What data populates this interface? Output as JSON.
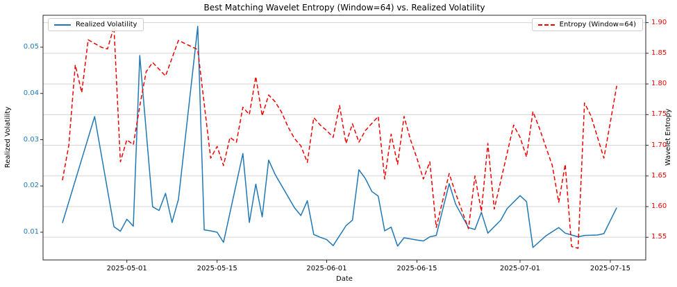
{
  "figure": {
    "title": "Best Matching Wavelet Entropy (Window=64) vs. Realized Volatility",
    "xlabel": "Date",
    "ylabel_left": "Realized Volatility",
    "ylabel_right": "Wavelet Entropy"
  },
  "legends": {
    "left_label": "Realized Volatility",
    "right_label": "Entropy (Window=64)"
  },
  "colors": {
    "volatility": "#1f77b4",
    "entropy": "#ee0000",
    "grid": "#d5d5d5",
    "spine": "#262626",
    "background": "#ffffff",
    "title_text": "#000000"
  },
  "chart_data": {
    "type": "line",
    "title": "Best Matching Wavelet Entropy (Window=64) vs. Realized Volatility",
    "xlabel": "Date",
    "ylabel_left": "Realized Volatility",
    "ylabel_right": "Wavelet Entropy",
    "grid": true,
    "legend_positions": [
      "upper left",
      "upper right"
    ],
    "x_ticks": [
      "2025-05-01",
      "2025-05-15",
      "2025-06-01",
      "2025-06-15",
      "2025-07-01",
      "2025-07-15"
    ],
    "y_ticks_left": [
      0.01,
      0.02,
      0.03,
      0.04,
      0.05
    ],
    "y_ticks_right": [
      1.55,
      1.6,
      1.65,
      1.7,
      1.75,
      1.8,
      1.85,
      1.9
    ],
    "x_domain": {
      "start": "2025-04-18",
      "days": 93.5
    },
    "y_range_left": [
      0.004,
      0.0569
    ],
    "y_range_right": [
      1.513,
      1.912
    ],
    "series": [
      {
        "name": "Realized Volatility",
        "axis": "left",
        "color": "#1f77b4",
        "style": "solid",
        "points": [
          [
            "2025-04-21",
            0.012
          ],
          [
            "2025-04-26",
            0.035
          ],
          [
            "2025-04-29",
            0.0112
          ],
          [
            "2025-04-30",
            0.0102
          ],
          [
            "2025-05-01",
            0.0128
          ],
          [
            "2025-05-02",
            0.0113
          ],
          [
            "2025-05-03",
            0.0482
          ],
          [
            "2025-05-05",
            0.0155
          ],
          [
            "2025-05-06",
            0.0147
          ],
          [
            "2025-05-07",
            0.0184
          ],
          [
            "2025-05-08",
            0.0121
          ],
          [
            "2025-05-09",
            0.0171
          ],
          [
            "2025-05-12",
            0.0545
          ],
          [
            "2025-05-13",
            0.0105
          ],
          [
            "2025-05-14",
            0.0103
          ],
          [
            "2025-05-15",
            0.01
          ],
          [
            "2025-05-16",
            0.0078
          ],
          [
            "2025-05-19",
            0.027
          ],
          [
            "2025-05-20",
            0.0121
          ],
          [
            "2025-05-21",
            0.0204
          ],
          [
            "2025-05-22",
            0.0133
          ],
          [
            "2025-05-23",
            0.0256
          ],
          [
            "2025-05-24",
            0.0225
          ],
          [
            "2025-05-27",
            0.0153
          ],
          [
            "2025-05-28",
            0.0136
          ],
          [
            "2025-05-29",
            0.0168
          ],
          [
            "2025-05-30",
            0.0095
          ],
          [
            "2025-05-31",
            0.0089
          ],
          [
            "2025-06-01",
            0.0084
          ],
          [
            "2025-06-02",
            0.0071
          ],
          [
            "2025-06-04",
            0.0114
          ],
          [
            "2025-06-05",
            0.0126
          ],
          [
            "2025-06-06",
            0.0235
          ],
          [
            "2025-06-07",
            0.0216
          ],
          [
            "2025-06-08",
            0.0188
          ],
          [
            "2025-06-09",
            0.0178
          ],
          [
            "2025-06-10",
            0.0103
          ],
          [
            "2025-06-11",
            0.0111
          ],
          [
            "2025-06-12",
            0.007
          ],
          [
            "2025-06-13",
            0.0088
          ],
          [
            "2025-06-15",
            0.0083
          ],
          [
            "2025-06-16",
            0.0081
          ],
          [
            "2025-06-17",
            0.009
          ],
          [
            "2025-06-18",
            0.0093
          ],
          [
            "2025-06-20",
            0.0205
          ],
          [
            "2025-06-21",
            0.0161
          ],
          [
            "2025-06-23",
            0.011
          ],
          [
            "2025-06-24",
            0.0106
          ],
          [
            "2025-06-25",
            0.0143
          ],
          [
            "2025-06-26",
            0.0098
          ],
          [
            "2025-06-28",
            0.0126
          ],
          [
            "2025-06-29",
            0.0151
          ],
          [
            "2025-07-01",
            0.0179
          ],
          [
            "2025-07-02",
            0.0166
          ],
          [
            "2025-07-03",
            0.0067
          ],
          [
            "2025-07-05",
            0.0092
          ],
          [
            "2025-07-07",
            0.011
          ],
          [
            "2025-07-08",
            0.0098
          ],
          [
            "2025-07-09",
            0.0094
          ],
          [
            "2025-07-10",
            0.009
          ],
          [
            "2025-07-11",
            0.0093
          ],
          [
            "2025-07-13",
            0.0094
          ],
          [
            "2025-07-14",
            0.0097
          ],
          [
            "2025-07-15",
            0.0125
          ],
          [
            "2025-07-16",
            0.0153
          ]
        ]
      },
      {
        "name": "Entropy (Window=64)",
        "axis": "right",
        "color": "#ee0000",
        "style": "dashed",
        "points": [
          [
            "2025-04-21",
            1.643
          ],
          [
            "2025-04-22",
            1.7
          ],
          [
            "2025-04-23",
            1.831
          ],
          [
            "2025-04-24",
            1.786
          ],
          [
            "2025-04-25",
            1.872
          ],
          [
            "2025-04-27",
            1.86
          ],
          [
            "2025-04-28",
            1.857
          ],
          [
            "2025-04-29",
            1.893
          ],
          [
            "2025-04-30",
            1.673
          ],
          [
            "2025-05-01",
            1.709
          ],
          [
            "2025-05-02",
            1.701
          ],
          [
            "2025-05-03",
            1.764
          ],
          [
            "2025-05-04",
            1.82
          ],
          [
            "2025-05-05",
            1.835
          ],
          [
            "2025-05-07",
            1.813
          ],
          [
            "2025-05-09",
            1.871
          ],
          [
            "2025-05-12",
            1.856
          ],
          [
            "2025-05-14",
            1.679
          ],
          [
            "2025-05-15",
            1.698
          ],
          [
            "2025-05-16",
            1.667
          ],
          [
            "2025-05-17",
            1.713
          ],
          [
            "2025-05-18",
            1.705
          ],
          [
            "2025-05-19",
            1.762
          ],
          [
            "2025-05-20",
            1.75
          ],
          [
            "2025-05-21",
            1.812
          ],
          [
            "2025-05-22",
            1.748
          ],
          [
            "2025-05-23",
            1.782
          ],
          [
            "2025-05-24",
            1.771
          ],
          [
            "2025-05-25",
            1.754
          ],
          [
            "2025-05-26",
            1.73
          ],
          [
            "2025-05-27",
            1.711
          ],
          [
            "2025-05-28",
            1.699
          ],
          [
            "2025-05-29",
            1.672
          ],
          [
            "2025-05-30",
            1.745
          ],
          [
            "2025-05-31",
            1.733
          ],
          [
            "2025-06-01",
            1.724
          ],
          [
            "2025-06-02",
            1.713
          ],
          [
            "2025-06-03",
            1.765
          ],
          [
            "2025-06-04",
            1.703
          ],
          [
            "2025-06-05",
            1.735
          ],
          [
            "2025-06-06",
            1.705
          ],
          [
            "2025-06-07",
            1.724
          ],
          [
            "2025-06-09",
            1.747
          ],
          [
            "2025-06-10",
            1.645
          ],
          [
            "2025-06-11",
            1.718
          ],
          [
            "2025-06-12",
            1.669
          ],
          [
            "2025-06-13",
            1.747
          ],
          [
            "2025-06-14",
            1.709
          ],
          [
            "2025-06-15",
            1.679
          ],
          [
            "2025-06-16",
            1.645
          ],
          [
            "2025-06-17",
            1.673
          ],
          [
            "2025-06-18",
            1.566
          ],
          [
            "2025-06-20",
            1.654
          ],
          [
            "2025-06-21",
            1.622
          ],
          [
            "2025-06-23",
            1.564
          ],
          [
            "2025-06-24",
            1.65
          ],
          [
            "2025-06-25",
            1.592
          ],
          [
            "2025-06-26",
            1.703
          ],
          [
            "2025-06-27",
            1.596
          ],
          [
            "2025-06-30",
            1.733
          ],
          [
            "2025-07-01",
            1.713
          ],
          [
            "2025-07-02",
            1.681
          ],
          [
            "2025-07-03",
            1.755
          ],
          [
            "2025-07-04",
            1.728
          ],
          [
            "2025-07-06",
            1.667
          ],
          [
            "2025-07-07",
            1.607
          ],
          [
            "2025-07-08",
            1.669
          ],
          [
            "2025-07-09",
            1.535
          ],
          [
            "2025-07-10",
            1.532
          ],
          [
            "2025-07-11",
            1.769
          ],
          [
            "2025-07-12",
            1.748
          ],
          [
            "2025-07-14",
            1.679
          ],
          [
            "2025-07-15",
            1.737
          ],
          [
            "2025-07-16",
            1.797
          ]
        ]
      }
    ]
  }
}
